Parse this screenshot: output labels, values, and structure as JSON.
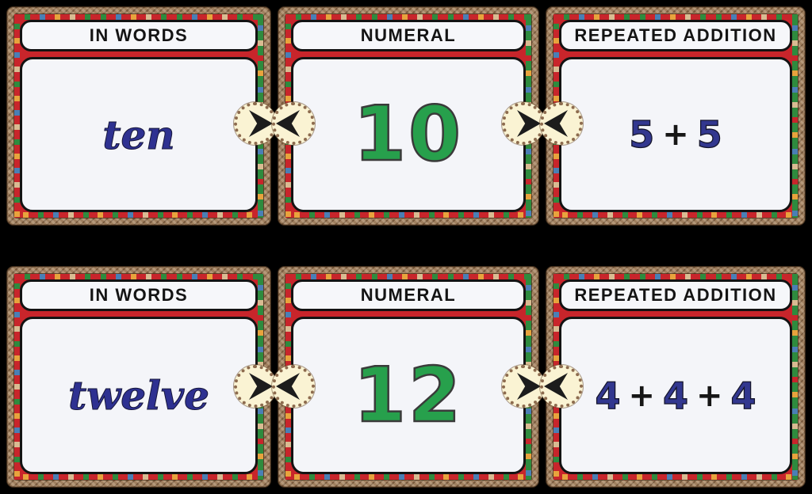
{
  "board": {
    "background": "#000000",
    "cards": [
      {
        "header": "IN WORDS",
        "value": "ten",
        "value_style": "word",
        "connectors": [
          "right"
        ]
      },
      {
        "header": "NUMERAL",
        "value": "10",
        "value_style": "numeral",
        "connectors": [
          "left",
          "right"
        ]
      },
      {
        "header": "REPEATED ADDITION",
        "value": "5 + 5",
        "value_style": "expression",
        "parts": [
          "5",
          "+",
          "5"
        ],
        "connectors": [
          "left"
        ]
      },
      {
        "header": "IN WORDS",
        "value": "twelve",
        "value_style": "word",
        "connectors": [
          "right"
        ]
      },
      {
        "header": "NUMERAL",
        "value": "12",
        "value_style": "numeral",
        "connectors": [
          "left",
          "right"
        ]
      },
      {
        "header": "REPEATED ADDITION",
        "value": "4 + 4 + 4",
        "value_style": "expression",
        "parts": [
          "4",
          "+",
          "4",
          "+",
          "4"
        ],
        "connectors": [
          "left"
        ]
      }
    ]
  },
  "colors": {
    "background": "#000000",
    "word_text": "#2e3191",
    "numeral_text": "#27a04c",
    "operator_text": "#161616",
    "header_text": "#141414",
    "panel_fill": "#f4f5f9",
    "rope_border": "#a0805f",
    "mosaic_red": "#c8252b",
    "mosaic_green": "#2e8b3e",
    "mosaic_blue": "#4a7fb5",
    "mosaic_yellow": "#e8a33d",
    "mosaic_tan": "#d9bb92",
    "badge_fill": "#faf3d3",
    "badge_trim": "#8d6b4e",
    "arrow": "#1c1c1c"
  }
}
